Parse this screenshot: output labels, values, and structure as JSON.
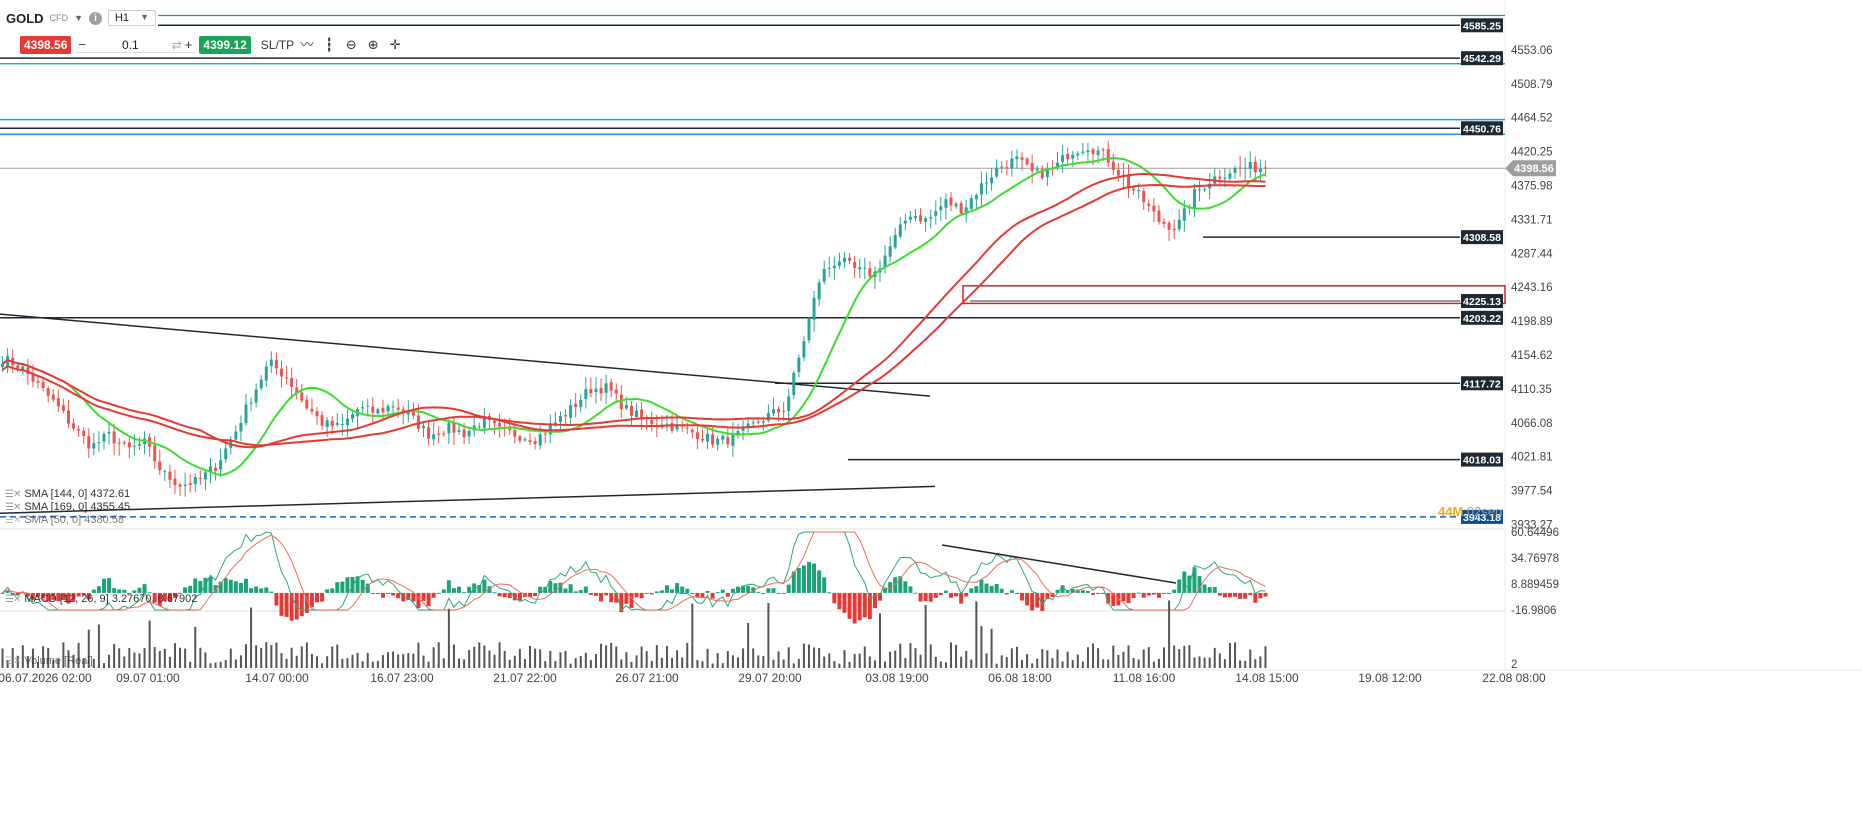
{
  "header": {
    "symbol": "GOLD",
    "symbol_tag": "CFD",
    "timeframe": "H1"
  },
  "trade_panel": {
    "sell_price": "4398.56",
    "buy_price": "4399.12",
    "quantity": "0.1",
    "minus_label": "−",
    "plus_label": "+",
    "sltp_label": "SL/TP"
  },
  "indicators": {
    "sma144": "SMA [144, 0] 4372.61",
    "sma169": "SMA [169, 0] 4355.45",
    "sma_third": "SMA [50, 0] 4380.58",
    "macd": "MACD [12, 26, 9] 3.27670, 8.67902",
    "volume": "Volume [Real]"
  },
  "countdown": {
    "minutes": "44M",
    "seconds": "02seg"
  },
  "colors": {
    "up_candle": "#26a69a",
    "down_candle": "#ef5350",
    "sma_fast": "#3ddc2f",
    "sma_slow": "#e53935",
    "line_black": "#1e2a33",
    "line_blue": "#1e9bd7",
    "line_green": "#18a558",
    "dash_blue": "#1565c0"
  },
  "chart_data": {
    "type": "candlestick",
    "symbol": "GOLD",
    "timeframe": "H1",
    "ylim": [
      3930,
      4600
    ],
    "y_ticks": [
      "4553.06",
      "4508.79",
      "4464.52",
      "4420.25",
      "4375.98",
      "4331.71",
      "4287.44",
      "4243.16",
      "4198.89",
      "4154.62",
      "4110.35",
      "4066.08",
      "4021.81",
      "3977.54",
      "3933.27"
    ],
    "x_ticks": [
      "06.07.2026 02:00",
      "09.07 01:00",
      "14.07 00:00",
      "16.07 23:00",
      "21.07 22:00",
      "26.07 21:00",
      "29.07 20:00",
      "03.08 19:00",
      "06.08 18:00",
      "11.08 16:00",
      "14.08 15:00",
      "19.08 12:00",
      "22.08 08:00"
    ],
    "close_path": [
      4150,
      4140,
      4115,
      4090,
      4060,
      4035,
      4050,
      4030,
      4040,
      4000,
      3985,
      3990,
      4010,
      4050,
      4100,
      4145,
      4125,
      4090,
      4065,
      4060,
      4085,
      4080,
      4090,
      4072,
      4050,
      4060,
      4052,
      4070,
      4055,
      4050,
      4045,
      4065,
      4085,
      4110,
      4112,
      4085,
      4070,
      4065,
      4060,
      4052,
      4042,
      4045,
      4060,
      4075,
      4085,
      4170,
      4260,
      4280,
      4265,
      4260,
      4300,
      4340,
      4330,
      4355,
      4345,
      4375,
      4400,
      4410,
      4390,
      4395,
      4420,
      4428,
      4415,
      4385,
      4360,
      4330,
      4320,
      4365,
      4385,
      4395,
      4400,
      4398.56
    ],
    "price_lines": [
      {
        "label": "4585.25",
        "value": 4585.25
      },
      {
        "label": "4542.29",
        "value": 4542.29
      },
      {
        "label": "4450.76",
        "value": 4450.76
      },
      {
        "label": "4308.58",
        "value": 4308.58
      },
      {
        "label": "4225.13",
        "value": 4225.13
      },
      {
        "label": "4203.22",
        "value": 4203.22
      },
      {
        "label": "4117.72",
        "value": 4117.72
      },
      {
        "label": "4018.03",
        "value": 4018.03
      },
      {
        "label": "3943.18",
        "value": 3943.18
      }
    ],
    "current_price": {
      "label": "4398.56",
      "value": 4398.56
    },
    "zone": {
      "from": 4222,
      "to": 4245
    },
    "macd": {
      "y_ticks": [
        "60.64496",
        "34.76978",
        "8.889459",
        "-16.9806"
      ],
      "ylim": [
        -16.98,
        60.64
      ]
    },
    "volume": {
      "y_ticks": [
        "2"
      ]
    }
  }
}
